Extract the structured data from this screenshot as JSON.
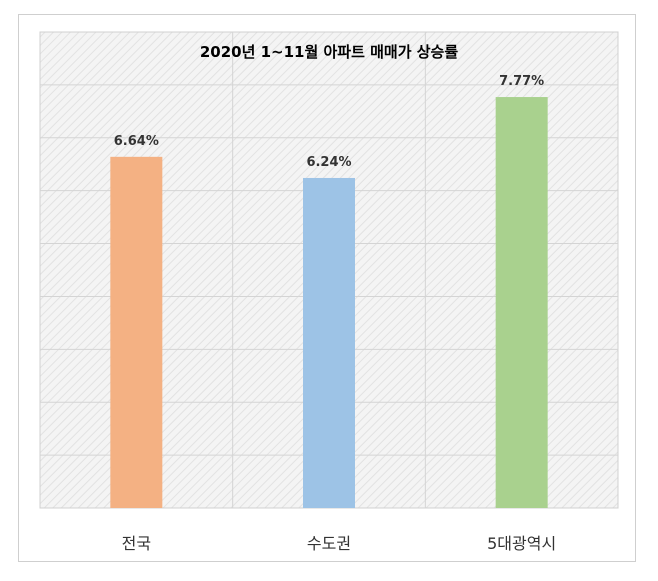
{
  "chart_data": {
    "type": "bar",
    "title": "2020년 1~11월 아파트 매매가 상승률",
    "categories": [
      "전국",
      "수도권",
      "5대광역시"
    ],
    "values": [
      6.64,
      6.24,
      7.77
    ],
    "data_labels": [
      "6.64%",
      "6.24%",
      "7.77%"
    ],
    "colors": [
      "#f4b183",
      "#9dc3e6",
      "#a9d18e"
    ],
    "xlabel": "",
    "ylabel": "",
    "ylim": [
      0,
      9
    ],
    "grid": true,
    "legend": "none"
  }
}
